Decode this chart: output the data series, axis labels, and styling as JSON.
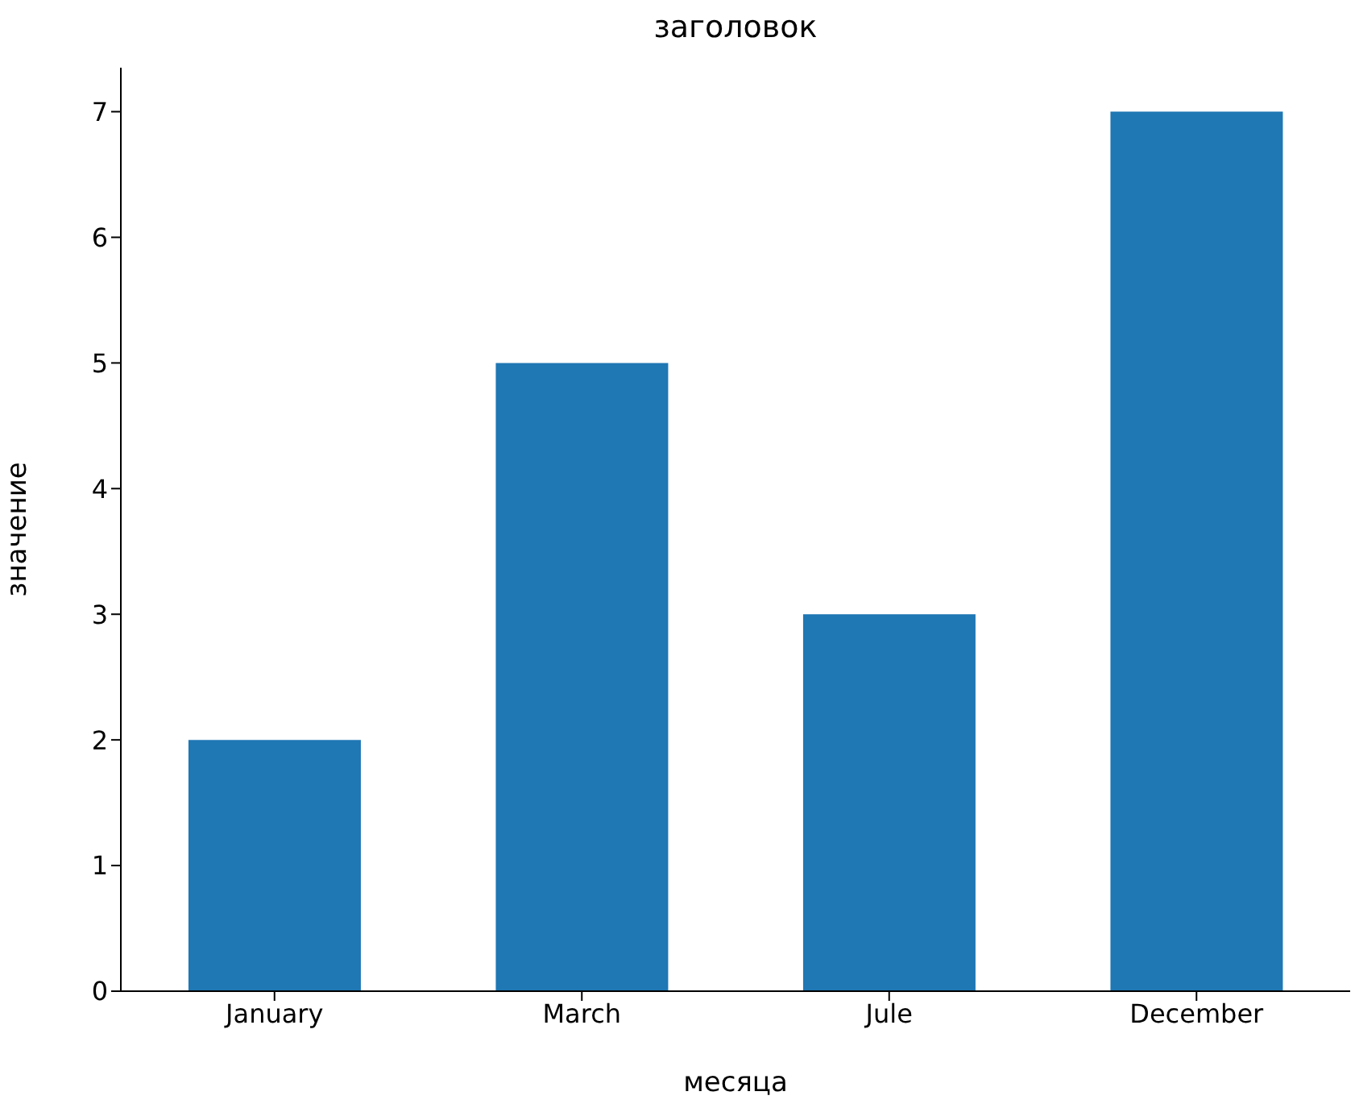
{
  "chart_data": {
    "type": "bar",
    "title": "заголовок",
    "xlabel": "месяца",
    "ylabel": "значение",
    "categories": [
      "January",
      "March",
      "Jule",
      "December"
    ],
    "values": [
      2,
      5,
      3,
      7
    ],
    "color": "#1f77b4",
    "ylim": [
      0,
      7.35
    ],
    "yticks": [
      0,
      1,
      2,
      3,
      4,
      5,
      6,
      7
    ],
    "grid": false,
    "legend": false
  }
}
